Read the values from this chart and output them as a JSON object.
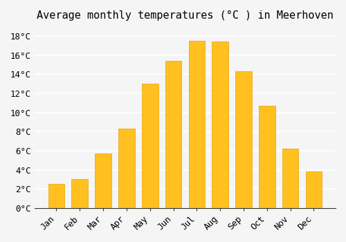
{
  "title": "Average monthly temperatures (°C ) in Meerhoven",
  "months": [
    "Jan",
    "Feb",
    "Mar",
    "Apr",
    "May",
    "Jun",
    "Jul",
    "Aug",
    "Sep",
    "Oct",
    "Nov",
    "Dec"
  ],
  "temperatures": [
    2.5,
    3.0,
    5.7,
    8.3,
    13.0,
    15.4,
    17.5,
    17.4,
    14.3,
    10.7,
    6.2,
    3.8
  ],
  "bar_color": "#FFC020",
  "bar_edge_color": "#E8A000",
  "background_color": "#F5F5F5",
  "grid_color": "#FFFFFF",
  "ylim": [
    0,
    19
  ],
  "yticks": [
    0,
    2,
    4,
    6,
    8,
    10,
    12,
    14,
    16,
    18
  ],
  "title_fontsize": 11,
  "tick_fontsize": 9,
  "tick_font_family": "monospace"
}
